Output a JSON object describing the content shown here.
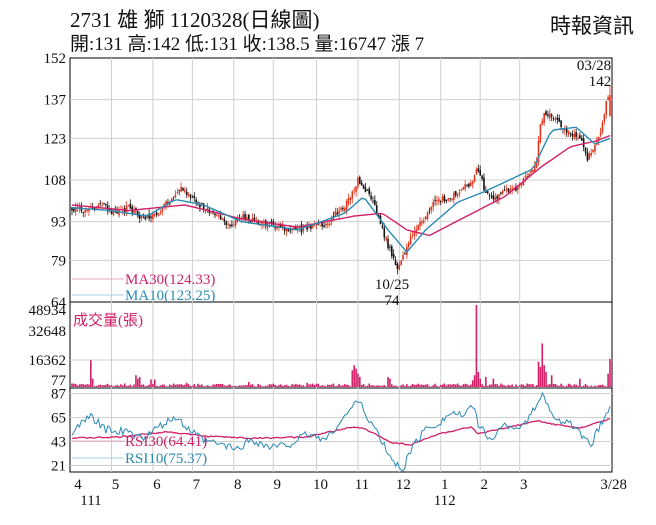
{
  "header": {
    "title": "2731 雄 獅 1120328(日線圖)",
    "quote": "開:131 高:142 低:131 收:138.5 量:16747 漲 7",
    "brand": "時報資訊"
  },
  "colors": {
    "up": "#e2341d",
    "down": "#111111",
    "ma30": "#d0206a",
    "ma10": "#2b8ab4",
    "volume": "#d0206a",
    "grid": "#cfcfcf"
  },
  "chart_data": [
    {
      "type": "candlestick",
      "ylim": [
        64,
        152
      ],
      "y_ticks": [
        152,
        137,
        123,
        108,
        93,
        79,
        64
      ],
      "annotations": [
        {
          "label": "03/28",
          "value": "142"
        },
        {
          "label": "10/25",
          "value": "74"
        }
      ],
      "legend": [
        {
          "name": "MA30(124.33)",
          "color": "#d0206a"
        },
        {
          "name": "MA10(123.25)",
          "color": "#2b8ab4"
        }
      ],
      "anchors_close": [
        [
          0,
          98
        ],
        [
          8,
          97
        ],
        [
          15,
          100
        ],
        [
          22,
          96
        ],
        [
          30,
          98
        ],
        [
          38,
          94
        ],
        [
          45,
          96
        ],
        [
          52,
          101
        ],
        [
          58,
          106
        ],
        [
          62,
          102
        ],
        [
          68,
          99
        ],
        [
          75,
          96
        ],
        [
          80,
          93
        ],
        [
          84,
          92
        ],
        [
          90,
          95
        ],
        [
          98,
          93
        ],
        [
          105,
          92
        ],
        [
          112,
          91
        ],
        [
          120,
          90
        ],
        [
          128,
          91
        ],
        [
          135,
          92
        ],
        [
          142,
          97
        ],
        [
          148,
          101
        ],
        [
          152,
          108
        ],
        [
          157,
          104
        ],
        [
          162,
          97
        ],
        [
          166,
          88
        ],
        [
          170,
          81
        ],
        [
          173,
          77
        ],
        [
          176,
          80
        ],
        [
          180,
          87
        ],
        [
          184,
          92
        ],
        [
          188,
          95
        ],
        [
          192,
          99
        ],
        [
          197,
          101
        ],
        [
          202,
          102
        ],
        [
          207,
          105
        ],
        [
          212,
          107
        ],
        [
          216,
          112
        ],
        [
          220,
          103
        ],
        [
          224,
          101
        ],
        [
          228,
          103
        ],
        [
          233,
          104
        ],
        [
          238,
          106
        ],
        [
          243,
          110
        ],
        [
          247,
          115
        ],
        [
          249,
          128
        ],
        [
          251,
          133
        ],
        [
          254,
          131
        ],
        [
          258,
          129
        ],
        [
          262,
          126
        ],
        [
          266,
          124
        ],
        [
          270,
          124
        ],
        [
          274,
          116
        ],
        [
          278,
          120
        ],
        [
          282,
          128
        ],
        [
          284,
          136
        ],
        [
          286,
          139
        ]
      ],
      "ma10_anchors": [
        [
          0,
          98
        ],
        [
          20,
          97
        ],
        [
          40,
          95
        ],
        [
          55,
          101
        ],
        [
          70,
          99
        ],
        [
          90,
          93
        ],
        [
          120,
          90
        ],
        [
          145,
          96
        ],
        [
          155,
          102
        ],
        [
          168,
          90
        ],
        [
          178,
          82
        ],
        [
          188,
          90
        ],
        [
          205,
          100
        ],
        [
          220,
          104
        ],
        [
          245,
          112
        ],
        [
          255,
          126
        ],
        [
          268,
          127
        ],
        [
          278,
          121
        ],
        [
          286,
          123
        ]
      ],
      "ma30_anchors": [
        [
          0,
          99
        ],
        [
          30,
          97
        ],
        [
          60,
          99
        ],
        [
          90,
          94
        ],
        [
          120,
          91
        ],
        [
          150,
          95
        ],
        [
          165,
          96
        ],
        [
          178,
          90
        ],
        [
          190,
          88
        ],
        [
          210,
          95
        ],
        [
          230,
          102
        ],
        [
          250,
          113
        ],
        [
          265,
          120
        ],
        [
          278,
          122
        ],
        [
          286,
          124
        ]
      ]
    },
    {
      "type": "bar",
      "title": "成交量(張)",
      "ylim": [
        0,
        48934
      ],
      "y_ticks": [
        "48934",
        "32648",
        "16362",
        "77"
      ],
      "spikes": [
        {
          "x": 10,
          "v": 16000
        },
        {
          "x": 11,
          "v": 5000
        },
        {
          "x": 34,
          "v": 7000
        },
        {
          "x": 35,
          "v": 5000
        },
        {
          "x": 36,
          "v": 6000
        },
        {
          "x": 42,
          "v": 4500
        },
        {
          "x": 44,
          "v": 4500
        },
        {
          "x": 61,
          "v": 2500
        },
        {
          "x": 94,
          "v": 3000
        },
        {
          "x": 125,
          "v": 2500
        },
        {
          "x": 149,
          "v": 10000
        },
        {
          "x": 150,
          "v": 13000
        },
        {
          "x": 151,
          "v": 11000
        },
        {
          "x": 152,
          "v": 8000
        },
        {
          "x": 153,
          "v": 6000
        },
        {
          "x": 168,
          "v": 6000
        },
        {
          "x": 169,
          "v": 5000
        },
        {
          "x": 213,
          "v": 4000
        },
        {
          "x": 214,
          "v": 7000
        },
        {
          "x": 215,
          "v": 48934
        },
        {
          "x": 216,
          "v": 9000
        },
        {
          "x": 217,
          "v": 5000
        },
        {
          "x": 220,
          "v": 6000
        },
        {
          "x": 224,
          "v": 5000
        },
        {
          "x": 248,
          "v": 15000
        },
        {
          "x": 249,
          "v": 12000
        },
        {
          "x": 250,
          "v": 26000
        },
        {
          "x": 251,
          "v": 13000
        },
        {
          "x": 252,
          "v": 9000
        },
        {
          "x": 255,
          "v": 7000
        },
        {
          "x": 270,
          "v": 5000
        },
        {
          "x": 285,
          "v": 8000
        },
        {
          "x": 286,
          "v": 16747
        }
      ]
    },
    {
      "type": "line",
      "ylim": [
        15,
        92
      ],
      "y_ticks": [
        87,
        65,
        43,
        21
      ],
      "legend": [
        {
          "name": "RSI30(64.41)",
          "color": "#d0206a"
        },
        {
          "name": "RSI10(75.37)",
          "color": "#2b8ab4"
        }
      ],
      "rsi30_anchors": [
        [
          0,
          46
        ],
        [
          25,
          47
        ],
        [
          50,
          52
        ],
        [
          70,
          48
        ],
        [
          95,
          46
        ],
        [
          125,
          47
        ],
        [
          148,
          56
        ],
        [
          155,
          55
        ],
        [
          170,
          42
        ],
        [
          180,
          40
        ],
        [
          195,
          50
        ],
        [
          212,
          56
        ],
        [
          216,
          50
        ],
        [
          232,
          56
        ],
        [
          248,
          62
        ],
        [
          252,
          60
        ],
        [
          270,
          55
        ],
        [
          286,
          64
        ]
      ],
      "rsi10_anchors": [
        [
          0,
          52
        ],
        [
          10,
          66
        ],
        [
          18,
          54
        ],
        [
          28,
          52
        ],
        [
          38,
          46
        ],
        [
          48,
          58
        ],
        [
          55,
          65
        ],
        [
          62,
          54
        ],
        [
          70,
          44
        ],
        [
          80,
          40
        ],
        [
          88,
          36
        ],
        [
          95,
          45
        ],
        [
          105,
          38
        ],
        [
          115,
          40
        ],
        [
          125,
          50
        ],
        [
          135,
          45
        ],
        [
          142,
          60
        ],
        [
          148,
          72
        ],
        [
          152,
          82
        ],
        [
          156,
          68
        ],
        [
          162,
          52
        ],
        [
          168,
          32
        ],
        [
          172,
          22
        ],
        [
          176,
          18
        ],
        [
          180,
          35
        ],
        [
          188,
          55
        ],
        [
          195,
          60
        ],
        [
          202,
          70
        ],
        [
          208,
          66
        ],
        [
          214,
          76
        ],
        [
          216,
          58
        ],
        [
          222,
          45
        ],
        [
          230,
          58
        ],
        [
          240,
          56
        ],
        [
          248,
          80
        ],
        [
          251,
          86
        ],
        [
          254,
          70
        ],
        [
          260,
          62
        ],
        [
          266,
          58
        ],
        [
          272,
          45
        ],
        [
          276,
          40
        ],
        [
          280,
          55
        ],
        [
          286,
          75
        ]
      ]
    }
  ],
  "x_axis": {
    "labels": [
      "4",
      "5",
      "6",
      "7",
      "8",
      "9",
      "10",
      "11",
      "12",
      "1",
      "2",
      "3",
      "3/28"
    ],
    "positions": [
      0,
      21,
      43,
      64,
      86,
      107,
      130,
      152,
      174,
      196,
      217,
      238,
      260
    ],
    "year_labels": [
      {
        "text": "111",
        "pos": 0
      },
      {
        "text": "112",
        "pos": 196
      }
    ]
  }
}
